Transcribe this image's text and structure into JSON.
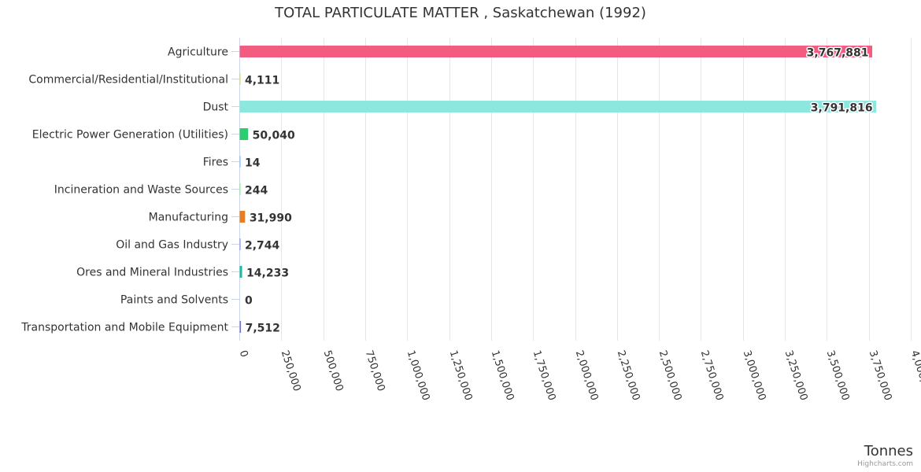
{
  "chart_data": {
    "type": "bar",
    "orientation": "horizontal",
    "title": "TOTAL PARTICULATE MATTER , Saskatchewan (1992)",
    "xlabel": "Tonnes",
    "ylabel": "",
    "xlim": [
      0,
      4000000
    ],
    "tick_step": 250000,
    "grid": true,
    "legend": "none",
    "categories": [
      "Agriculture",
      "Commercial/Residential/Institutional",
      "Dust",
      "Electric Power Generation (Utilities)",
      "Fires",
      "Incineration and Waste Sources",
      "Manufacturing",
      "Oil and Gas Industry",
      "Ores and Mineral Industries",
      "Paints and Solvents",
      "Transportation and Mobile Equipment"
    ],
    "values": [
      3767881,
      4111,
      3791816,
      50040,
      14,
      244,
      31990,
      2744,
      14233,
      0,
      7512
    ],
    "colors": [
      "#f15c80",
      "#e4d354",
      "#8ce8de",
      "#2ecc71",
      "#7cb5ec",
      "#90ed7d",
      "#e67e22",
      "#8085e9",
      "#1abc9c",
      "#f7a35c",
      "#6c72e8"
    ]
  },
  "credits": "Highcharts.com"
}
